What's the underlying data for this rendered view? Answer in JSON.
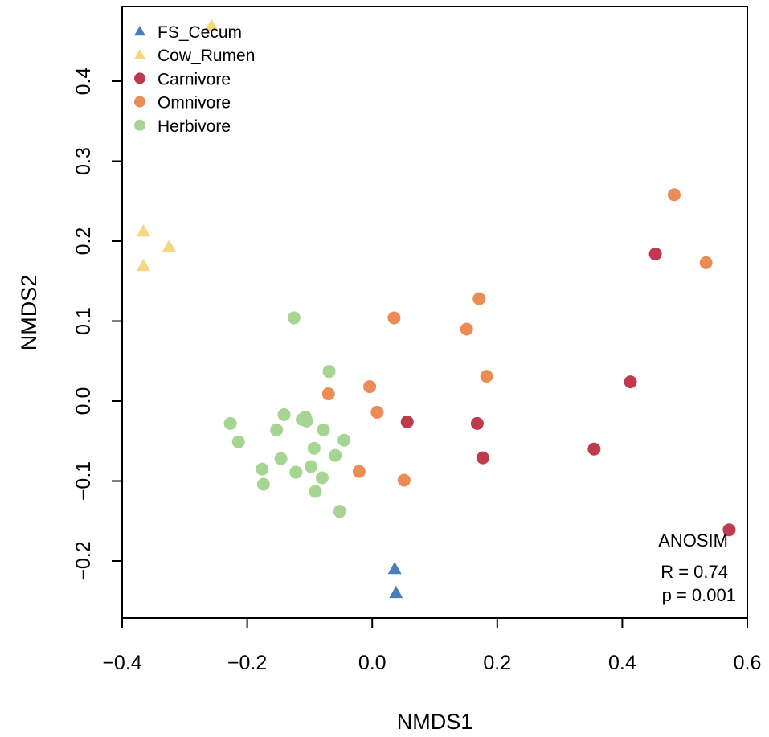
{
  "chart_data": {
    "type": "scatter",
    "title": "",
    "xlabel": "NMDS1",
    "ylabel": "NMDS2",
    "xlim": [
      -0.4,
      0.6
    ],
    "ylim": [
      -0.28,
      0.49
    ],
    "x_ticks": [
      -0.4,
      -0.2,
      0.0,
      0.2,
      0.4,
      0.6
    ],
    "x_tick_labels": [
      "−0.4",
      "−0.2",
      "0.0",
      "0.2",
      "0.4",
      "0.6"
    ],
    "y_ticks": [
      -0.2,
      -0.1,
      0.0,
      0.1,
      0.2,
      0.3,
      0.4
    ],
    "y_tick_labels": [
      "−0.2",
      "−0.1",
      "0.0",
      "0.1",
      "0.2",
      "0.3",
      "0.4"
    ],
    "legend_position": "top-left",
    "series": [
      {
        "name": "FS_Cecum",
        "marker": "triangle",
        "color": "#4a7ebb",
        "points": [
          [
            0.036,
            -0.21
          ],
          [
            0.038,
            -0.24
          ]
        ]
      },
      {
        "name": "Cow_Rumen",
        "marker": "triangle",
        "color": "#f5d77f",
        "points": [
          [
            -0.366,
            0.212
          ],
          [
            -0.325,
            0.193
          ],
          [
            -0.366,
            0.169
          ],
          [
            -0.257,
            0.469
          ]
        ]
      },
      {
        "name": "Carnivore",
        "marker": "circle",
        "color": "#bf3a4c",
        "points": [
          [
            0.453,
            0.184
          ],
          [
            0.413,
            0.024
          ],
          [
            0.355,
            -0.06
          ],
          [
            0.056,
            -0.026
          ],
          [
            0.168,
            -0.028
          ],
          [
            0.177,
            -0.071
          ],
          [
            0.571,
            -0.161
          ]
        ]
      },
      {
        "name": "Omnivore",
        "marker": "circle",
        "color": "#eb8c55",
        "points": [
          [
            0.483,
            0.258
          ],
          [
            0.534,
            0.173
          ],
          [
            0.171,
            0.128
          ],
          [
            0.151,
            0.09
          ],
          [
            0.035,
            0.104
          ],
          [
            0.183,
            0.031
          ],
          [
            -0.004,
            0.018
          ],
          [
            -0.07,
            0.009
          ],
          [
            0.008,
            -0.014
          ],
          [
            -0.021,
            -0.088
          ],
          [
            0.051,
            -0.099
          ]
        ]
      },
      {
        "name": "Herbivore",
        "marker": "circle",
        "color": "#a6d493",
        "points": [
          [
            -0.125,
            0.104
          ],
          [
            -0.069,
            0.037
          ],
          [
            -0.227,
            -0.028
          ],
          [
            -0.214,
            -0.051
          ],
          [
            -0.141,
            -0.017
          ],
          [
            -0.107,
            -0.02
          ],
          [
            -0.112,
            -0.023
          ],
          [
            -0.105,
            -0.025
          ],
          [
            -0.153,
            -0.036
          ],
          [
            -0.078,
            -0.036
          ],
          [
            -0.093,
            -0.059
          ],
          [
            -0.045,
            -0.049
          ],
          [
            -0.146,
            -0.072
          ],
          [
            -0.059,
            -0.068
          ],
          [
            -0.176,
            -0.085
          ],
          [
            -0.122,
            -0.089
          ],
          [
            -0.098,
            -0.082
          ],
          [
            -0.08,
            -0.096
          ],
          [
            -0.174,
            -0.104
          ],
          [
            -0.091,
            -0.113
          ],
          [
            -0.052,
            -0.138
          ]
        ]
      }
    ],
    "annotation": {
      "title": "ANOSIM",
      "r": "R = 0.74",
      "p": "p = 0.001"
    }
  }
}
